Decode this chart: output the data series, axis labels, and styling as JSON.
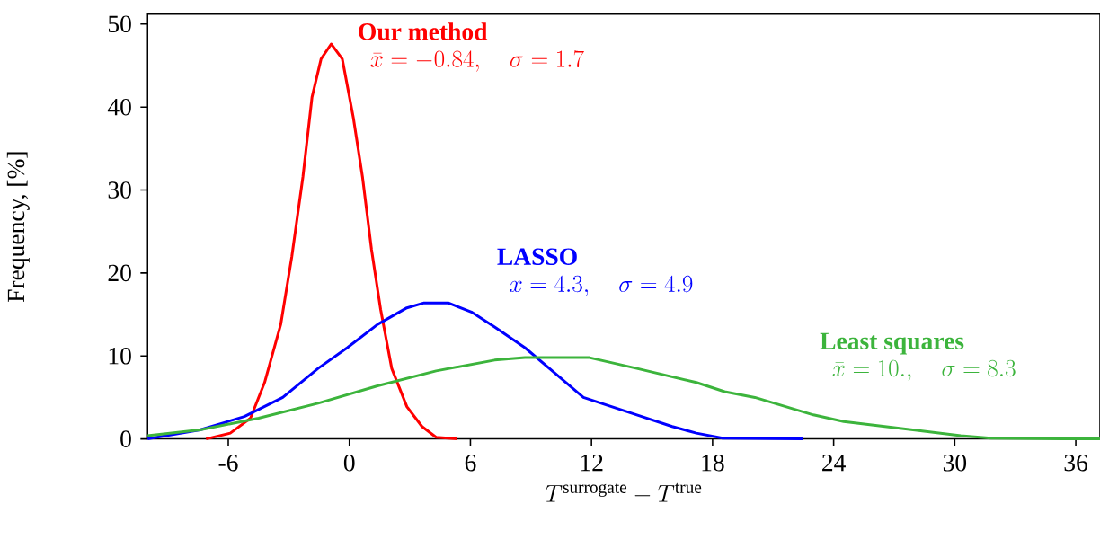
{
  "chart_data": {
    "type": "line",
    "xlabel": "T^{\\mathrm{surrogate}} - T^{\\mathrm{true}}",
    "ylabel": "Frequency, [%]",
    "xlim": [
      -10,
      37.2
    ],
    "ylim": [
      0,
      51.2
    ],
    "xticks": [
      -6,
      0,
      6,
      12,
      18,
      24,
      30,
      36
    ],
    "yticks": [
      0,
      10,
      20,
      30,
      40,
      50
    ],
    "grid": false,
    "annotations": [
      "\\bar{x} = -0.84, \\quad \\sigma = 1.7",
      "\\bar{x} = 4.3, \\quad \\sigma = 4.9",
      "\\bar{x} = 10., \\quad \\sigma = 8.3"
    ],
    "series": [
      {
        "name": "Our method",
        "color": "#ff0000",
        "x": [
          -7.1,
          -5.9,
          -4.9,
          -4.2,
          -3.4,
          -2.85,
          -2.3,
          -1.85,
          -1.4,
          -0.9,
          -0.35,
          0.2,
          0.65,
          1.1,
          1.55,
          2.1,
          2.85,
          3.6,
          4.3,
          5.35
        ],
        "values": [
          0,
          0.7,
          2.5,
          6.8,
          13.8,
          22,
          31.6,
          41.2,
          45.8,
          47.6,
          45.8,
          38.7,
          31.6,
          22.8,
          15.6,
          8.5,
          3.9,
          1.5,
          0.2,
          0
        ]
      },
      {
        "name": "LASSO",
        "color": "#0000ff",
        "x": [
          -10,
          -7.4,
          -5.2,
          -3.3,
          -1.55,
          -0.1,
          1.4,
          2.85,
          3.7,
          4.9,
          6.05,
          7.2,
          8.7,
          10.2,
          11.6,
          14.25,
          16,
          17.2,
          18.5,
          22.5
        ],
        "values": [
          0,
          1.1,
          2.7,
          5,
          8.5,
          11,
          13.8,
          15.8,
          16.4,
          16.4,
          15.3,
          13.5,
          11,
          7.9,
          5,
          2.9,
          1.5,
          0.7,
          0.1,
          0
        ]
      },
      {
        "name": "Least squares",
        "color": "#3cb43c",
        "x": [
          -10,
          -7.4,
          -4.5,
          -1.55,
          1.4,
          4.3,
          7.2,
          8.7,
          9.9,
          11.9,
          14.25,
          17.2,
          18.6,
          20.1,
          23,
          24.5,
          30.3,
          31.8,
          35.4,
          37.2
        ],
        "values": [
          0.4,
          1.1,
          2.5,
          4.3,
          6.4,
          8.2,
          9.5,
          9.8,
          9.8,
          9.8,
          8.5,
          6.8,
          5.7,
          5,
          2.9,
          2.1,
          0.4,
          0.1,
          0,
          0
        ]
      }
    ]
  }
}
